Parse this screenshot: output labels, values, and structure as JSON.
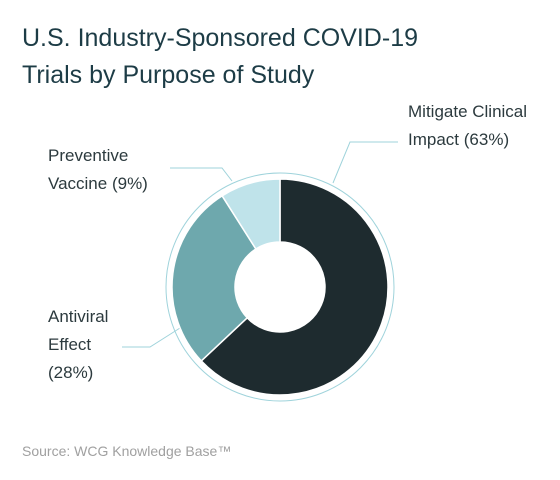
{
  "chart_data": {
    "type": "pie",
    "title": "U.S. Industry-Sponsored COVID-19 Trials by Purpose of Study",
    "categories": [
      "Mitigate Clinical Impact",
      "Antiviral Effect",
      "Preventive Vaccine"
    ],
    "values": [
      63,
      28,
      9
    ],
    "value_labels": [
      "(63%)",
      "(28%)",
      "(9%)"
    ],
    "colors": [
      "#1e2b2f",
      "#6ea8ad",
      "#bfe3ea"
    ],
    "source": "Source: WCG Knowledge Base™"
  }
}
